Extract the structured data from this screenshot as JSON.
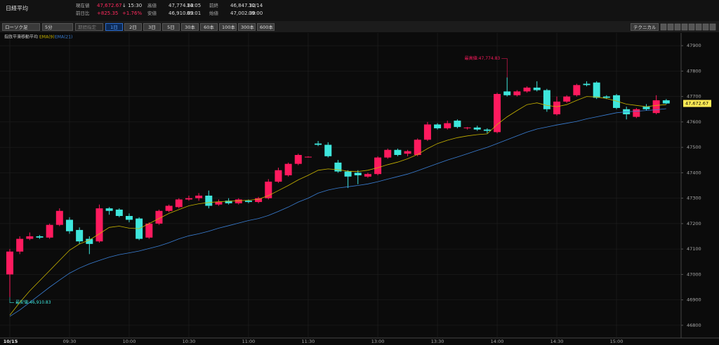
{
  "header": {
    "title": "日経平均",
    "fields": [
      {
        "label": "現在値",
        "value": "47,672.67",
        "extra": "↓ 15:30"
      },
      {
        "label": "前日比",
        "value": "+825.35",
        "extra": "+1.76%"
      },
      {
        "label": "高値",
        "value": "47,774.83",
        "extra": "14:05"
      },
      {
        "label": "安値",
        "value": "46,910.83",
        "extra": "09:01"
      },
      {
        "label": "前終",
        "value": "46,847.32",
        "extra": "10/14"
      },
      {
        "label": "始値",
        "value": "47,002.30",
        "extra": "09:00"
      }
    ]
  },
  "toolbar": {
    "selects": [
      "ローソク足",
      "5分",
      "期間指定"
    ],
    "ranges": [
      "1日",
      "2日",
      "3日",
      "5日",
      "30本",
      "60本",
      "100本",
      "300本",
      "600本"
    ],
    "active_range": "1日",
    "technical": "テクニカル"
  },
  "chart_data": {
    "type": "candlestick",
    "legend_title": "指数平滑移動平均",
    "up_color": "#ff1a5e",
    "down_color": "#3ee6dc",
    "categories": [
      "10/15",
      null,
      null,
      null,
      null,
      null,
      "09:30",
      null,
      null,
      null,
      null,
      null,
      "10:00",
      null,
      null,
      null,
      null,
      null,
      "10:30",
      null,
      null,
      null,
      null,
      null,
      "11:00",
      null,
      null,
      null,
      null,
      null,
      "11:30",
      null,
      null,
      null,
      null,
      null,
      null,
      "13:00",
      null,
      null,
      null,
      null,
      null,
      "13:30",
      null,
      null,
      null,
      null,
      null,
      "14:00",
      null,
      null,
      null,
      null,
      null,
      "14:30",
      null,
      null,
      null,
      null,
      null,
      "15:00",
      null,
      null,
      null,
      null,
      null
    ],
    "open": [
      47000,
      47090,
      47140,
      47150,
      47145,
      47195,
      47215,
      47175,
      47140,
      47130,
      47260,
      47255,
      47230,
      47220,
      47145,
      47200,
      47250,
      47265,
      47295,
      47300,
      47310,
      47275,
      47290,
      47280,
      47290,
      47285,
      47300,
      47365,
      47390,
      47435,
      47462,
      47515,
      47510,
      47440,
      47405,
      47400,
      47385,
      47395,
      47460,
      47490,
      47475,
      47470,
      47530,
      47590,
      47575,
      47605,
      47575,
      47578,
      47570,
      47560,
      47720,
      47705,
      47720,
      47735,
      47725,
      47630,
      47680,
      47705,
      47750,
      47755,
      47700,
      47705,
      47650,
      47620,
      47660,
      47635,
      47685
    ],
    "high": [
      47100,
      47150,
      47165,
      47155,
      47200,
      47260,
      47225,
      47185,
      47150,
      47275,
      47265,
      47260,
      47240,
      47225,
      47205,
      47255,
      47275,
      47300,
      47310,
      47320,
      47330,
      47295,
      47300,
      47300,
      47295,
      47305,
      47375,
      47420,
      47440,
      47475,
      47465,
      47525,
      47520,
      47450,
      47410,
      47410,
      47400,
      47465,
      47495,
      47495,
      47490,
      47535,
      47600,
      47595,
      47605,
      47610,
      47580,
      47585,
      47575,
      47715,
      47774.83,
      47725,
      47740,
      47760,
      47730,
      47700,
      47705,
      47750,
      47760,
      47760,
      47705,
      47710,
      47660,
      47655,
      47670,
      47705,
      47690
    ],
    "low": [
      46910.83,
      47080,
      47135,
      47140,
      47140,
      47190,
      47160,
      47120,
      47080,
      47125,
      47235,
      47225,
      47205,
      47135,
      47140,
      47195,
      47245,
      47260,
      47290,
      47290,
      47260,
      47270,
      47275,
      47275,
      47280,
      47280,
      47295,
      47360,
      47385,
      47430,
      47460,
      47505,
      47460,
      47400,
      47340,
      47355,
      47380,
      47390,
      47455,
      47465,
      47465,
      47465,
      47525,
      47570,
      47570,
      47575,
      47570,
      47565,
      47555,
      47555,
      47700,
      47700,
      47715,
      47720,
      47640,
      47625,
      47675,
      47700,
      47740,
      47690,
      47690,
      47650,
      47610,
      47615,
      47645,
      47630,
      47670
    ],
    "close": [
      47090,
      47140,
      47150,
      47145,
      47195,
      47250,
      47170,
      47130,
      47120,
      47260,
      47250,
      47230,
      47215,
      47140,
      47200,
      47250,
      47270,
      47295,
      47300,
      47310,
      47270,
      47285,
      47280,
      47295,
      47285,
      47300,
      47365,
      47410,
      47435,
      47470,
      47463,
      47510,
      47465,
      47405,
      47385,
      47390,
      47395,
      47460,
      47490,
      47470,
      47485,
      47530,
      47590,
      47575,
      47595,
      47580,
      47578,
      47570,
      47565,
      47710,
      47705,
      47720,
      47735,
      47725,
      47650,
      47680,
      47700,
      47745,
      47745,
      47695,
      47695,
      47655,
      47630,
      47650,
      47650,
      47685,
      47672.67
    ],
    "series": [
      {
        "name": "EMA(9)",
        "color": "#c8b400",
        "values": [
          46840,
          46890,
          46935,
          46975,
          47015,
          47055,
          47095,
          47120,
          47135,
          47160,
          47185,
          47190,
          47182,
          47180,
          47200,
          47220,
          47240,
          47255,
          47270,
          47278,
          47283,
          47286,
          47288,
          47290,
          47292,
          47296,
          47310,
          47330,
          47350,
          47372,
          47390,
          47410,
          47415,
          47412,
          47406,
          47405,
          47410,
          47420,
          47432,
          47442,
          47455,
          47472,
          47495,
          47515,
          47528,
          47538,
          47545,
          47550,
          47553,
          47590,
          47620,
          47645,
          47668,
          47675,
          47665,
          47660,
          47668,
          47685,
          47700,
          47698,
          47692,
          47682,
          47670,
          47665,
          47660,
          47665,
          47668
        ]
      },
      {
        "name": "EMA(21)",
        "color": "#3a7fd5",
        "values": [
          46835,
          46860,
          46890,
          46920,
          46950,
          46978,
          47005,
          47025,
          47042,
          47055,
          47068,
          47078,
          47085,
          47092,
          47102,
          47112,
          47125,
          47140,
          47152,
          47160,
          47170,
          47182,
          47192,
          47202,
          47212,
          47220,
          47232,
          47248,
          47265,
          47285,
          47300,
          47320,
          47332,
          47340,
          47345,
          47350,
          47356,
          47365,
          47375,
          47385,
          47395,
          47408,
          47422,
          47436,
          47450,
          47462,
          47475,
          47488,
          47500,
          47515,
          47530,
          47545,
          47560,
          47572,
          47580,
          47588,
          47595,
          47602,
          47612,
          47620,
          47628,
          47636,
          47640,
          47642,
          47645,
          47648,
          47652
        ]
      }
    ],
    "annotations": [
      {
        "label": "最高値:47,774.83"
      },
      {
        "label": "最安値:46,910.83"
      }
    ],
    "last_label": "47,672.67",
    "ylim": [
      46750,
      47950
    ],
    "yticks": [
      46800,
      46900,
      47000,
      47100,
      47200,
      47300,
      47400,
      47500,
      47600,
      47700,
      47800,
      47900
    ],
    "grid": true
  }
}
